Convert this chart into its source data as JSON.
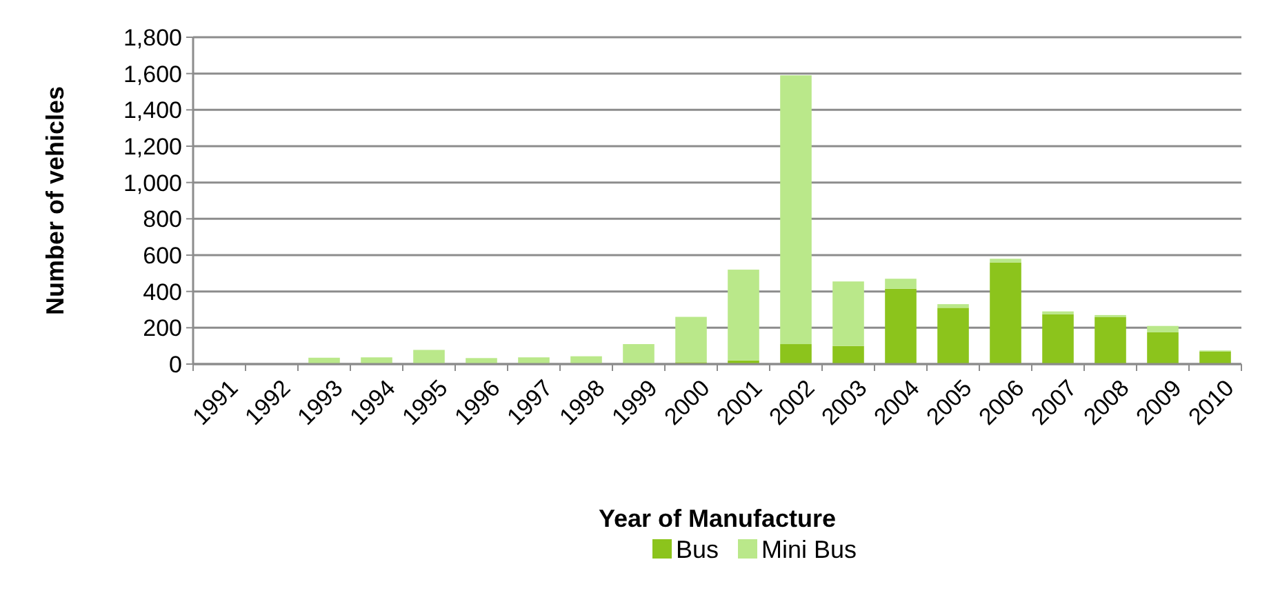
{
  "chart_data": {
    "type": "bar",
    "stacked": true,
    "xlabel": "Year of Manufacture",
    "ylabel": "Number of vehicles",
    "categories": [
      "1991",
      "1992",
      "1993",
      "1994",
      "1995",
      "1996",
      "1997",
      "1998",
      "1999",
      "2000",
      "2001",
      "2002",
      "2003",
      "2004",
      "2005",
      "2006",
      "2007",
      "2008",
      "2009",
      "2010"
    ],
    "series": [
      {
        "name": "Bus",
        "color": "#8cc41c",
        "values": [
          0,
          0,
          0,
          0,
          0,
          0,
          0,
          0,
          0,
          10,
          20,
          110,
          100,
          415,
          310,
          560,
          275,
          260,
          175,
          70
        ]
      },
      {
        "name": "Mini Bus",
        "color": "#bae88a",
        "values": [
          0,
          null,
          35,
          37,
          78,
          33,
          37,
          43,
          110,
          250,
          500,
          1480,
          355,
          55,
          20,
          20,
          15,
          10,
          35,
          5
        ]
      }
    ],
    "ylim": [
      0,
      1800
    ],
    "yticks": [
      {
        "value": 0,
        "label": "0"
      },
      {
        "value": 200,
        "label": "200"
      },
      {
        "value": 400,
        "label": "400"
      },
      {
        "value": 600,
        "label": "600"
      },
      {
        "value": 800,
        "label": "800"
      },
      {
        "value": 1000,
        "label": "1,000"
      },
      {
        "value": 1200,
        "label": "1,200"
      },
      {
        "value": 1400,
        "label": "1,400"
      },
      {
        "value": 1600,
        "label": "1,600"
      },
      {
        "value": 1800,
        "label": "1,800"
      }
    ],
    "grid": "y",
    "legend": "bottom"
  }
}
